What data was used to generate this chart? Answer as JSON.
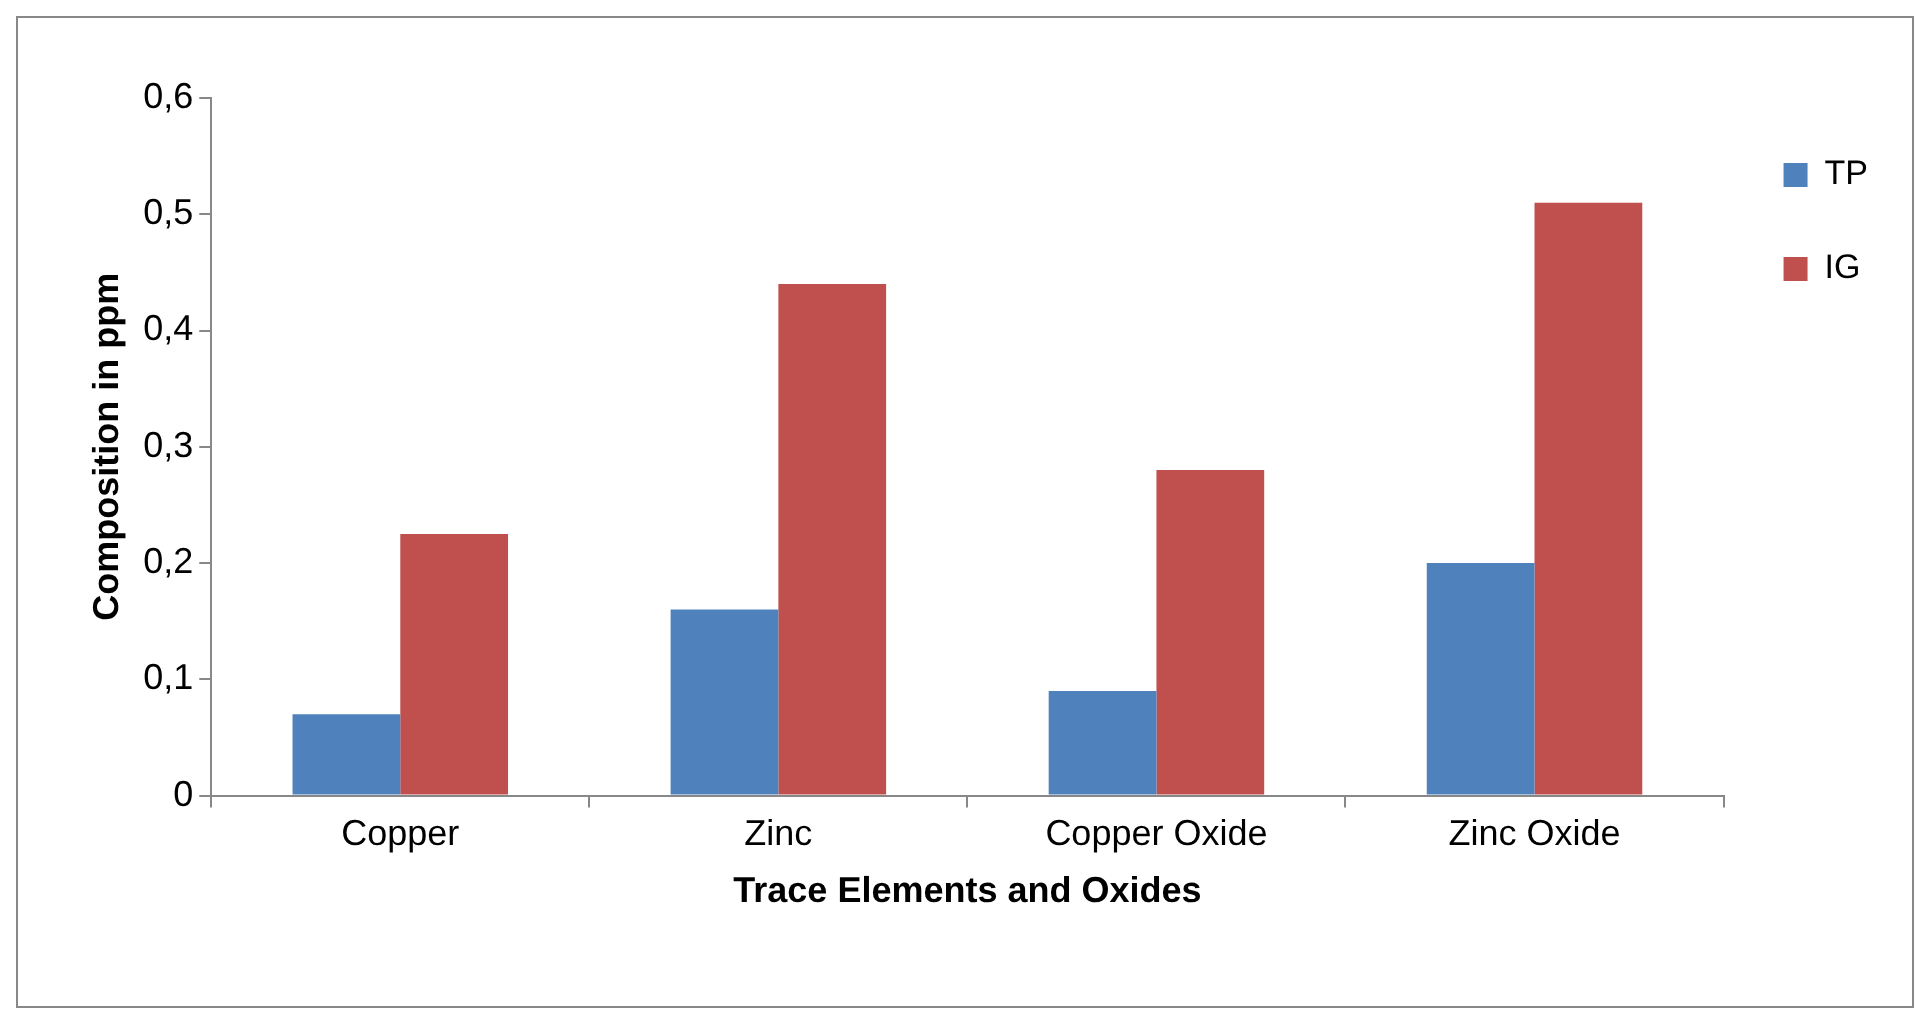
{
  "chart_data": {
    "type": "bar",
    "xlabel": "Trace Elements and Oxides",
    "ylabel": "Composition in ppm",
    "categories": [
      "Copper",
      "Zinc",
      "Copper Oxide",
      "Zinc Oxide"
    ],
    "series": [
      {
        "name": "TP",
        "color": "#4f81bd",
        "values": [
          0.07,
          0.16,
          0.09,
          0.2
        ]
      },
      {
        "name": "IG",
        "color": "#c0504d",
        "values": [
          0.225,
          0.44,
          0.28,
          0.51
        ]
      }
    ],
    "ylim": [
      0,
      0.6
    ],
    "yticks": [
      {
        "value": 0,
        "label": "0"
      },
      {
        "value": 0.1,
        "label": "0,1"
      },
      {
        "value": 0.2,
        "label": "0,2"
      },
      {
        "value": 0.3,
        "label": "0,3"
      },
      {
        "value": 0.4,
        "label": "0,4"
      },
      {
        "value": 0.5,
        "label": "0,5"
      },
      {
        "value": 0.6,
        "label": "0,6"
      }
    ],
    "grid": false,
    "legend": "top right"
  }
}
